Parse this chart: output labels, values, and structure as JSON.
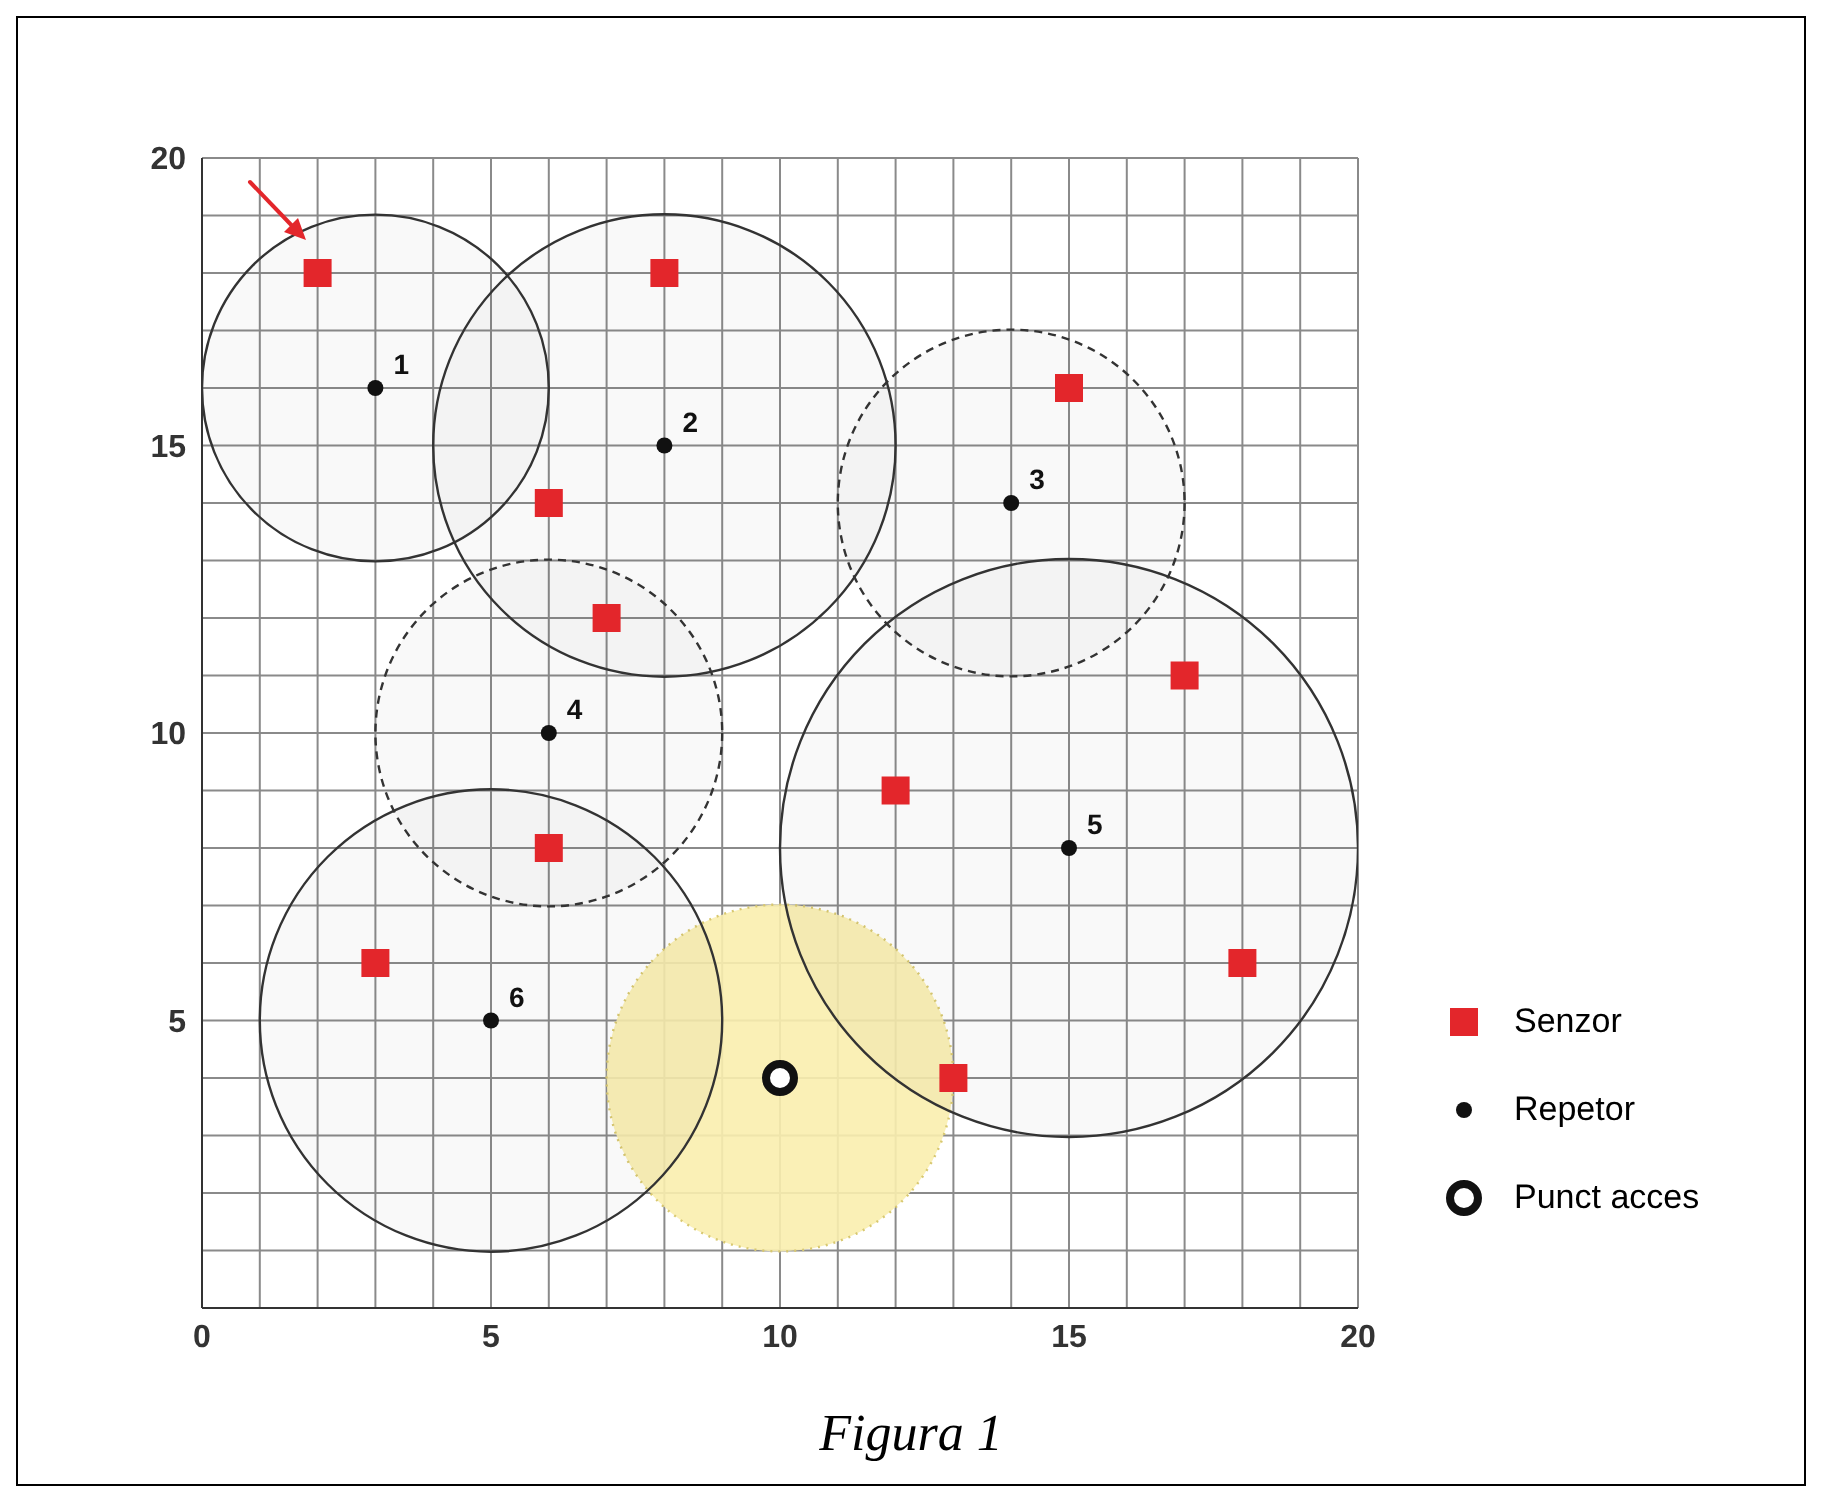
{
  "chart_data": {
    "type": "scatter",
    "xlim": [
      0,
      20
    ],
    "ylim": [
      0,
      20
    ],
    "xticks": [
      0,
      {
        "value": 1,
        "label": null
      },
      {
        "value": 2,
        "label": null
      },
      {
        "value": 3,
        "label": null
      },
      {
        "value": 4,
        "label": null
      },
      5,
      {
        "value": 6,
        "label": null
      },
      {
        "value": 7,
        "label": null
      },
      {
        "value": 8,
        "label": null
      },
      {
        "value": 9,
        "label": null
      },
      10,
      {
        "value": 11,
        "label": null
      },
      {
        "value": 12,
        "label": null
      },
      {
        "value": 13,
        "label": null
      },
      {
        "value": 14,
        "label": null
      },
      15,
      {
        "value": 16,
        "label": null
      },
      {
        "value": 17,
        "label": null
      },
      {
        "value": 18,
        "label": null
      },
      {
        "value": 19,
        "label": null
      },
      20
    ],
    "yticks": [
      {
        "value": 0,
        "label": null
      },
      {
        "value": 1,
        "label": null
      },
      {
        "value": 2,
        "label": null
      },
      {
        "value": 3,
        "label": null
      },
      {
        "value": 4,
        "label": null
      },
      5,
      {
        "value": 6,
        "label": null
      },
      {
        "value": 7,
        "label": null
      },
      {
        "value": 8,
        "label": null
      },
      {
        "value": 9,
        "label": null
      },
      10,
      {
        "value": 11,
        "label": null
      },
      {
        "value": 12,
        "label": null
      },
      {
        "value": 13,
        "label": null
      },
      {
        "value": 14,
        "label": null
      },
      15,
      {
        "value": 16,
        "label": null
      },
      {
        "value": 17,
        "label": null
      },
      {
        "value": 18,
        "label": null
      },
      {
        "value": 19,
        "label": null
      },
      20
    ],
    "grid": true,
    "legend": "right",
    "annotations": [
      "Figura 1",
      {
        "text": "1",
        "x": 3,
        "y": 16
      },
      {
        "text": "2",
        "x": 8,
        "y": 15
      },
      {
        "text": "3",
        "x": 14,
        "y": 14
      },
      {
        "text": "4",
        "x": 6,
        "y": 10
      },
      {
        "text": "5",
        "x": 15,
        "y": 8
      },
      {
        "text": "6",
        "x": 5,
        "y": 5
      }
    ],
    "series": [
      {
        "type": "bubble",
        "color": "#f9eeae",
        "marker": "circle",
        "line_style": "dotted",
        "x": [
          10
        ],
        "values": [
          4
        ],
        "sizes": [
          0.36
        ]
      },
      {
        "type": "bubble",
        "color": "#333333",
        "line_style": "solid",
        "x": [
          3,
          8,
          15,
          5
        ],
        "values": [
          16,
          15,
          8,
          5
        ],
        "sizes": [
          0.36,
          0.64,
          1,
          0.64
        ]
      },
      {
        "type": "bubble",
        "color": "#333333",
        "line_style": "dashed",
        "x": [
          14,
          6
        ],
        "values": [
          14,
          10
        ],
        "sizes": [
          0.36,
          0.36
        ]
      },
      {
        "name": "Senzor",
        "color": "#e3262b",
        "marker": "square",
        "x": [
          2,
          8,
          15,
          6,
          7,
          17,
          12,
          6,
          3,
          18,
          13
        ],
        "values": [
          18,
          18,
          16,
          14,
          12,
          11,
          9,
          8,
          6,
          6,
          4
        ]
      },
      {
        "name": "Repetor",
        "color": "#111111",
        "marker": "circle",
        "x": [
          3,
          8,
          14,
          6,
          15,
          5
        ],
        "values": [
          16,
          15,
          14,
          10,
          8,
          5
        ]
      },
      {
        "name": "Punct acces",
        "color": "#111111",
        "x": [
          10
        ],
        "values": [
          4
        ]
      }
    ]
  }
}
